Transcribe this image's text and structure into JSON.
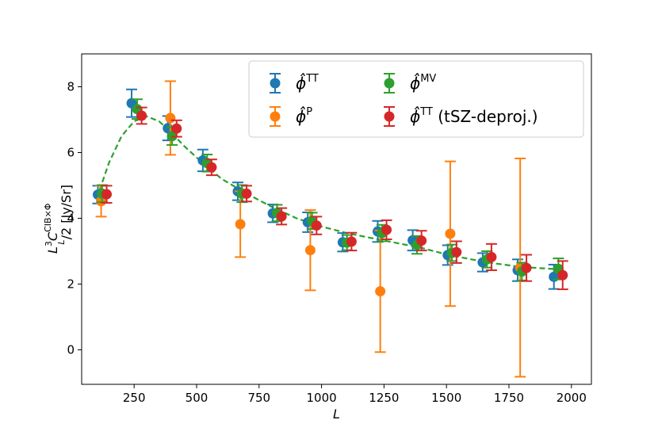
{
  "chart_data": {
    "type": "scatter",
    "title": "",
    "xlabel": "L",
    "ylabel": {
      "base": "L",
      "sup1": "3",
      "mid": "C",
      "sup2": "CIB×Φ",
      "sub2": "L",
      "tail": "/2 [Jy/Sr]"
    },
    "xlim": [
      40,
      2080
    ],
    "ylim": [
      -1.05,
      9.0
    ],
    "xticks": [
      250,
      500,
      750,
      1000,
      1250,
      1500,
      1750,
      2000
    ],
    "yticks": [
      0,
      2,
      4,
      6,
      8
    ],
    "legend_position": "top-right",
    "series": [
      {
        "name": "TT",
        "label_main": "ϕ̂",
        "label_sup": "TT",
        "label_extra": "",
        "color": "#1f77b4",
        "x": [
          105,
          240,
          385,
          525,
          665,
          805,
          945,
          1085,
          1225,
          1365,
          1505,
          1645,
          1785,
          1930
        ],
        "y": [
          4.72,
          7.5,
          6.74,
          5.76,
          4.82,
          4.15,
          3.88,
          3.27,
          3.6,
          3.33,
          2.88,
          2.66,
          2.42,
          2.22
        ],
        "err": [
          0.27,
          0.42,
          0.37,
          0.33,
          0.27,
          0.27,
          0.3,
          0.28,
          0.32,
          0.31,
          0.3,
          0.28,
          0.33,
          0.37
        ]
      },
      {
        "name": "P",
        "label_main": "ϕ̂",
        "label_sup": "P",
        "label_extra": "",
        "color": "#ff7f0e",
        "x": [
          118,
          395,
          675,
          955,
          1235,
          1515,
          1795
        ],
        "y": [
          4.52,
          7.05,
          3.82,
          3.03,
          1.78,
          3.53,
          2.5
        ],
        "err": [
          0.47,
          1.12,
          1.0,
          1.22,
          1.85,
          2.2,
          3.32
        ]
      },
      {
        "name": "MV",
        "label_main": "ϕ̂",
        "label_sup": "MV",
        "label_extra": "",
        "color": "#2ca02c",
        "x": [
          122,
          262,
          402,
          542,
          682,
          822,
          962,
          1102,
          1242,
          1382,
          1522,
          1662,
          1802,
          1948
        ],
        "y": [
          4.75,
          7.32,
          6.5,
          5.68,
          4.75,
          4.16,
          3.92,
          3.26,
          3.55,
          3.19,
          2.95,
          2.75,
          2.38,
          2.46
        ],
        "err": [
          0.26,
          0.3,
          0.27,
          0.26,
          0.26,
          0.25,
          0.25,
          0.23,
          0.25,
          0.27,
          0.25,
          0.25,
          0.27,
          0.32
        ]
      },
      {
        "name": "TT (tSZ-deproj.)",
        "label_main": "ϕ̂",
        "label_sup": "TT",
        "label_extra": " (tSZ-deproj.)",
        "color": "#d62728",
        "x": [
          140,
          280,
          420,
          560,
          700,
          840,
          980,
          1120,
          1260,
          1400,
          1540,
          1680,
          1820,
          1965
        ],
        "y": [
          4.73,
          7.12,
          6.73,
          5.55,
          4.75,
          4.06,
          3.78,
          3.29,
          3.65,
          3.32,
          2.97,
          2.82,
          2.49,
          2.27
        ],
        "err": [
          0.26,
          0.25,
          0.25,
          0.24,
          0.24,
          0.25,
          0.27,
          0.27,
          0.29,
          0.3,
          0.33,
          0.4,
          0.4,
          0.43
        ]
      }
    ],
    "model_curve": {
      "name": "model",
      "color": "#2ca02c",
      "style": "dashed",
      "x": [
        100,
        150,
        200,
        250,
        300,
        350,
        400,
        450,
        500,
        600,
        700,
        800,
        900,
        1000,
        1100,
        1200,
        1300,
        1400,
        1500,
        1600,
        1700,
        1800,
        1900,
        1965
      ],
      "y": [
        4.6,
        5.7,
        6.5,
        6.95,
        7.1,
        6.95,
        6.6,
        6.2,
        5.85,
        5.2,
        4.75,
        4.35,
        4.0,
        3.75,
        3.55,
        3.4,
        3.25,
        3.1,
        2.9,
        2.75,
        2.62,
        2.52,
        2.47,
        2.44
      ]
    }
  }
}
